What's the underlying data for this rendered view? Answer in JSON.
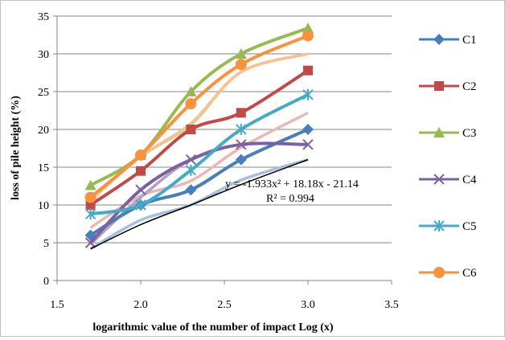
{
  "chart_data": {
    "type": "line",
    "title": "",
    "xlabel": "logarithmic value of the number of impact Log (x)",
    "ylabel": "loss of pile height (%)",
    "xlim": [
      1.5,
      3.5
    ],
    "ylim": [
      0,
      35
    ],
    "x_ticks": [
      "1.5",
      "2.0",
      "2.5",
      "3.0",
      "3.5"
    ],
    "y_ticks": [
      "0",
      "5",
      "10",
      "15",
      "20",
      "25",
      "30",
      "35"
    ],
    "grid": "horizontal",
    "legend_position": "right",
    "x": [
      1.7,
      2.0,
      2.3,
      2.6,
      3.0
    ],
    "series": [
      {
        "name": "C1",
        "color": "#4a7ebb",
        "trend_color": "#a7bfde",
        "marker": "diamond",
        "values": [
          6,
          10,
          12,
          16,
          20
        ],
        "trend": [
          4.2,
          8,
          10,
          13.3,
          16
        ]
      },
      {
        "name": "C2",
        "color": "#be4b48",
        "trend_color": "#e6b9b8",
        "marker": "square",
        "values": [
          10,
          14.5,
          20,
          22.2,
          27.8
        ],
        "trend": [
          7,
          11.2,
          13.2,
          17.6,
          22.2
        ]
      },
      {
        "name": "C3",
        "color": "#98b954",
        "trend_color": "#c4d79b",
        "marker": "triangle",
        "values": [
          12.6,
          16.6,
          25,
          30,
          33.4
        ],
        "trend": [
          10.8,
          16.4,
          20.6,
          27.6,
          30
        ]
      },
      {
        "name": "C4",
        "color": "#7d60a0",
        "trend_color": "#b3a2c7",
        "marker": "x",
        "values": [
          5,
          12,
          16,
          18,
          18
        ],
        "trend": [
          4.8,
          11,
          16,
          18,
          18
        ]
      },
      {
        "name": "C5",
        "color": "#46aac5",
        "trend_color": "#93cddd",
        "marker": "star",
        "values": [
          8.8,
          10,
          14.6,
          20,
          24.6
        ],
        "trend": [
          8.8,
          10,
          14.6,
          20,
          24.6
        ]
      },
      {
        "name": "C6",
        "color": "#f69240",
        "trend_color": "#fac090",
        "marker": "circle",
        "values": [
          11,
          16.6,
          23.4,
          28.6,
          32.4
        ],
        "trend": [
          10.6,
          16.4,
          20.8,
          27.6,
          30
        ]
      }
    ],
    "fit_line": {
      "color": "#000000",
      "x": [
        1.7,
        2.0,
        2.3,
        2.6,
        3.0
      ],
      "y": [
        4.2,
        7.4,
        10.0,
        12.7,
        16.0
      ]
    },
    "annotation": {
      "equation": "y = -1.933x² + 18.18x - 21.14",
      "r_squared": "R² = 0.994"
    }
  }
}
